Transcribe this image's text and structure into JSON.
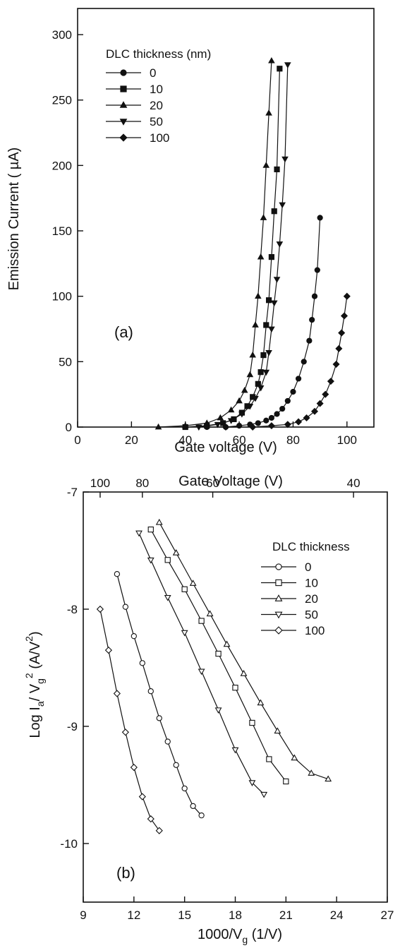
{
  "chart_data": [
    {
      "type": "scatter",
      "panel_label": "(a)",
      "xlabel": "Gate voltage (V)",
      "ylabel": "Emission Current ( µA)",
      "xlim": [
        0,
        110
      ],
      "ylim": [
        0,
        320
      ],
      "xticks": [
        0,
        20,
        40,
        60,
        80,
        100
      ],
      "yticks": [
        0,
        50,
        100,
        150,
        200,
        250,
        300
      ],
      "legend_title": "DLC thickness (nm)",
      "legend_position": "top-left",
      "series": [
        {
          "name": "0",
          "marker": "circle-filled",
          "x": [
            48,
            55,
            60,
            64,
            67,
            70,
            72,
            74,
            76,
            78,
            80,
            82,
            84,
            86,
            87,
            88,
            89,
            90
          ],
          "y": [
            0,
            0,
            1,
            2,
            3,
            5,
            7,
            10,
            14,
            20,
            27,
            37,
            50,
            66,
            82,
            100,
            120,
            160
          ]
        },
        {
          "name": "10",
          "marker": "square-filled",
          "x": [
            40,
            48,
            54,
            58,
            61,
            63,
            65,
            67,
            68,
            69,
            70,
            71,
            72,
            73,
            74,
            75
          ],
          "y": [
            0,
            1,
            3,
            6,
            11,
            16,
            23,
            33,
            42,
            55,
            78,
            97,
            130,
            165,
            197,
            274
          ]
        },
        {
          "name": "20",
          "marker": "triangle-up-filled",
          "x": [
            30,
            40,
            48,
            53,
            57,
            60,
            62,
            64,
            65,
            66,
            67,
            68,
            69,
            70,
            71,
            72
          ],
          "y": [
            0,
            1,
            3,
            7,
            13,
            20,
            28,
            40,
            55,
            78,
            100,
            130,
            160,
            200,
            240,
            280
          ]
        },
        {
          "name": "50",
          "marker": "triangle-down-filled",
          "x": [
            45,
            52,
            57,
            61,
            64,
            66,
            68,
            70,
            71,
            72,
            73,
            74,
            75,
            76,
            77,
            78
          ],
          "y": [
            0,
            2,
            5,
            10,
            16,
            22,
            30,
            42,
            57,
            75,
            95,
            113,
            140,
            170,
            205,
            277
          ]
        },
        {
          "name": "100",
          "marker": "diamond-filled",
          "x": [
            55,
            65,
            72,
            78,
            82,
            85,
            88,
            90,
            92,
            94,
            96,
            97,
            98,
            99,
            100
          ],
          "y": [
            0,
            0,
            1,
            2,
            4,
            7,
            12,
            18,
            25,
            35,
            48,
            60,
            72,
            85,
            100
          ]
        }
      ]
    },
    {
      "type": "scatter",
      "panel_label": "(b)",
      "xlabel": "1000/V_g (1/V)",
      "ylabel": "Log I_a/V_g^2 (A/V^2)",
      "top_xlabel": "Gate Voltage (V)",
      "top_xticks": [
        100,
        80,
        60,
        40
      ],
      "xlim": [
        9,
        27
      ],
      "ylim": [
        -10.5,
        -7
      ],
      "xticks": [
        9,
        12,
        15,
        18,
        21,
        24,
        27
      ],
      "yticks": [
        -10,
        -9,
        -8,
        -7
      ],
      "legend_title": "DLC thickness",
      "legend_position": "top-right",
      "series": [
        {
          "name": "0",
          "marker": "circle-open",
          "x": [
            11.0,
            11.5,
            12.0,
            12.5,
            13.0,
            13.5,
            14.0,
            14.5,
            15.0,
            15.5,
            16.0
          ],
          "y": [
            -7.7,
            -7.98,
            -8.23,
            -8.46,
            -8.7,
            -8.93,
            -9.13,
            -9.33,
            -9.53,
            -9.68,
            -9.76
          ]
        },
        {
          "name": "10",
          "marker": "square-open",
          "x": [
            13.0,
            14.0,
            15.0,
            16.0,
            17.0,
            18.0,
            19.0,
            20.0,
            21.0
          ],
          "y": [
            -7.32,
            -7.58,
            -7.83,
            -8.1,
            -8.38,
            -8.67,
            -8.97,
            -9.28,
            -9.47
          ]
        },
        {
          "name": "20",
          "marker": "triangle-up-open",
          "x": [
            13.5,
            14.5,
            15.5,
            16.5,
            17.5,
            18.5,
            19.5,
            20.5,
            21.5,
            22.5,
            23.5
          ],
          "y": [
            -7.26,
            -7.52,
            -7.78,
            -8.04,
            -8.3,
            -8.55,
            -8.8,
            -9.04,
            -9.27,
            -9.4,
            -9.45
          ]
        },
        {
          "name": "50",
          "marker": "triangle-down-open",
          "x": [
            12.3,
            13.0,
            14.0,
            15.0,
            16.0,
            17.0,
            18.0,
            19.0,
            19.7
          ],
          "y": [
            -7.35,
            -7.58,
            -7.9,
            -8.2,
            -8.53,
            -8.86,
            -9.2,
            -9.48,
            -9.58
          ]
        },
        {
          "name": "100",
          "marker": "diamond-open",
          "x": [
            10.0,
            10.5,
            11.0,
            11.5,
            12.0,
            12.5,
            13.0,
            13.5
          ],
          "y": [
            -8.0,
            -8.35,
            -8.72,
            -9.05,
            -9.35,
            -9.6,
            -9.79,
            -9.89
          ]
        }
      ]
    }
  ]
}
